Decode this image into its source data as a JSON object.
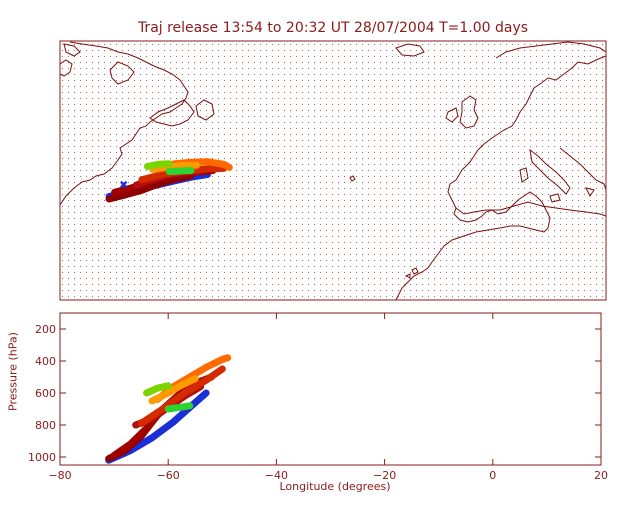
{
  "title": "Traj release 13:54 to 20:32 UT 28/07/2004    T=1.00 days",
  "colors": {
    "axis": "#8b1a1a",
    "coast": "#7a1010",
    "grid_dot": "#8b1a1a",
    "traj": [
      "#8b0000",
      "#a00000",
      "#b01010",
      "#d42a00",
      "#ff6a00",
      "#ff9a00",
      "#2fd32f",
      "#7ad400",
      "#1a2fd8"
    ]
  },
  "chart_data": {
    "type": "map",
    "map": {
      "lon_range": [
        -80,
        20
      ],
      "lat_range": [
        20,
        70
      ],
      "grid_dots": true
    },
    "profile": {
      "type": "scatter",
      "xlabel": "Longitude  (degrees)",
      "ylabel": "Pressure  (hPa)",
      "xlim": [
        -80,
        20
      ],
      "ylim": [
        1050,
        100
      ],
      "xticks": [
        -80,
        -60,
        -40,
        -20,
        0,
        20
      ],
      "yticks": [
        200,
        400,
        600,
        800,
        1000
      ]
    },
    "series": [
      {
        "color_index": 8,
        "lon": [
          -71,
          -67,
          -63,
          -59,
          -56,
          -53
        ],
        "lat": [
          40.0,
          40.8,
          42.0,
          43.0,
          43.7,
          44.2
        ],
        "p": [
          1020,
          960,
          880,
          780,
          690,
          600
        ]
      },
      {
        "color_index": 0,
        "lon": [
          -71,
          -68,
          -65,
          -62,
          -59,
          -56
        ],
        "lat": [
          39.5,
          40.3,
          41.2,
          42.4,
          43.3,
          44.0
        ],
        "p": [
          1010,
          960,
          870,
          740,
          650,
          590
        ]
      },
      {
        "color_index": 1,
        "lon": [
          -70,
          -67,
          -64,
          -61,
          -58,
          -55,
          -52
        ],
        "lat": [
          40.8,
          41.6,
          42.7,
          43.6,
          44.3,
          44.7,
          45.0
        ],
        "p": [
          990,
          920,
          820,
          700,
          610,
          540,
          500
        ]
      },
      {
        "color_index": 2,
        "lon": [
          -66,
          -63,
          -60,
          -57,
          -54
        ],
        "lat": [
          42.2,
          43.3,
          44.2,
          44.7,
          45.0
        ],
        "p": [
          800,
          760,
          690,
          620,
          560
        ]
      },
      {
        "color_index": 3,
        "lon": [
          -65,
          -61,
          -57,
          -53,
          -50
        ],
        "lat": [
          43.2,
          44.3,
          45.0,
          45.3,
          45.4
        ],
        "p": [
          790,
          700,
          600,
          520,
          450
        ]
      },
      {
        "color_index": 4,
        "lon": [
          -62,
          -59,
          -56,
          -53,
          -50,
          -49
        ],
        "lat": [
          45.5,
          46.3,
          46.6,
          46.7,
          46.2,
          45.6
        ],
        "p": [
          640,
          560,
          500,
          440,
          390,
          380
        ]
      },
      {
        "color_index": 5,
        "lon": [
          -63,
          -60,
          -58,
          -55
        ],
        "lat": [
          45.2,
          45.7,
          45.9,
          46.0
        ],
        "p": [
          650,
          600,
          560,
          510
        ]
      },
      {
        "color_index": 7,
        "lon": [
          -64,
          -62,
          -60
        ],
        "lat": [
          45.8,
          46.2,
          46.3
        ],
        "p": [
          600,
          570,
          555
        ]
      },
      {
        "color_index": 6,
        "lon": [
          -60,
          -58,
          -56
        ],
        "lat": [
          44.8,
          44.9,
          45.0
        ],
        "p": [
          700,
          690,
          680
        ]
      }
    ]
  }
}
